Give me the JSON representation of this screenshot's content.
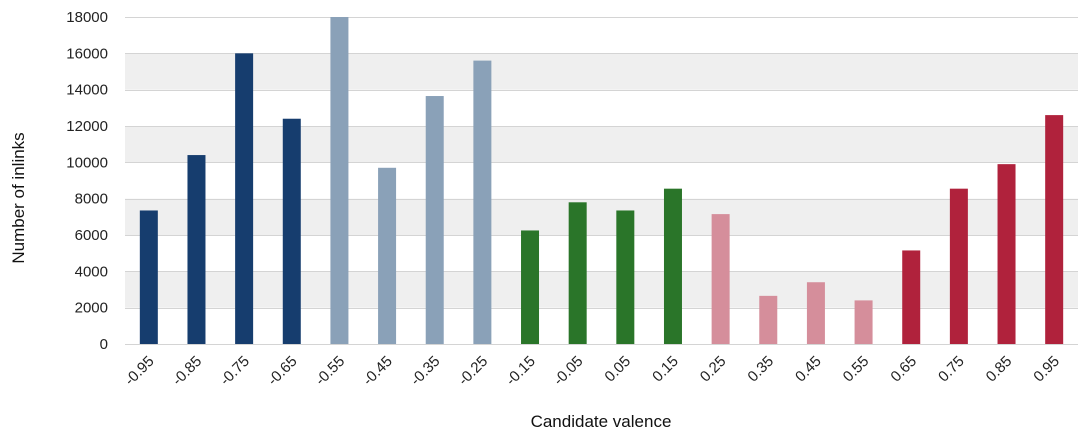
{
  "chart_data": {
    "type": "bar",
    "title": "",
    "xlabel": "Candidate valence",
    "ylabel": "Number of inlinks",
    "ylim": [
      0,
      18000
    ],
    "yticks": [
      "0",
      "2000",
      "4000",
      "6000",
      "8000",
      "10000",
      "12000",
      "14000",
      "16000",
      "18000"
    ],
    "grid": true,
    "grid_style": "alternating bands",
    "legend": "none",
    "categories": [
      "-0.95",
      "-0.85",
      "-0.75",
      "-0.65",
      "-0.55",
      "-0.45",
      "-0.35",
      "-0.25",
      "-0.15",
      "-0.05",
      "0.05",
      "0.15",
      "0.25",
      "0.35",
      "0.45",
      "0.55",
      "0.65",
      "0.75",
      "0.85",
      "0.95"
    ],
    "values": [
      7350,
      10400,
      16000,
      12400,
      18000,
      9700,
      13650,
      15600,
      6250,
      7800,
      7350,
      8550,
      7150,
      2650,
      3400,
      2400,
      5150,
      8550,
      9900,
      12600
    ],
    "bar_colors": [
      "#163d6e",
      "#163d6e",
      "#163d6e",
      "#163d6e",
      "#8aa1b8",
      "#8aa1b8",
      "#8aa1b8",
      "#8aa1b8",
      "#2a7529",
      "#2a7529",
      "#2a7529",
      "#2a7529",
      "#d58e9b",
      "#d58e9b",
      "#d58e9b",
      "#d58e9b",
      "#b0223c",
      "#b0223c",
      "#b0223c",
      "#b0223c"
    ],
    "colors": {
      "band": "#efefef",
      "gridline": "#d4d4d4"
    }
  }
}
